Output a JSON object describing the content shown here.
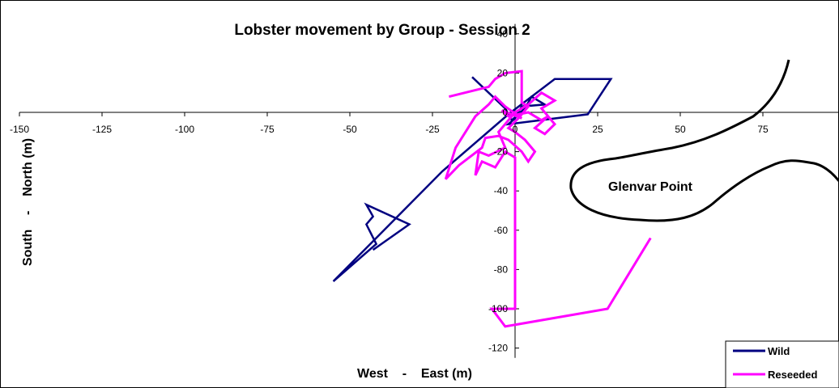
{
  "chart_data": {
    "type": "scatter",
    "title": "Lobster movement by Group - Session 2",
    "xlabel": "West    -    East (m)",
    "ylabel": "South    -    North (m)",
    "xlim": [
      -150,
      100
    ],
    "ylim": [
      -125,
      45
    ],
    "xticks": [
      "-150",
      "-125",
      "-100",
      "-75",
      "-50",
      "-25",
      "0",
      "25",
      "50",
      "75"
    ],
    "yticks": [
      "-120",
      "-100",
      "-80",
      "-60",
      "-40",
      "-20",
      "0",
      "20",
      "40"
    ],
    "annotation": "Glenvar Point",
    "legend_position": "bottom-right",
    "series": [
      {
        "name": "Wild",
        "color": "#000080",
        "points": [
          [
            -13,
            18
          ],
          [
            -3,
            2
          ],
          [
            -1,
            -4
          ],
          [
            3,
            2
          ],
          [
            5,
            8
          ],
          [
            9,
            4
          ],
          [
            2,
            3
          ],
          [
            0,
            -3
          ],
          [
            -2,
            -6
          ],
          [
            22,
            -1
          ],
          [
            29,
            17
          ],
          [
            12,
            17
          ],
          [
            -2,
            -1
          ],
          [
            -22,
            -30
          ],
          [
            -55,
            -86
          ],
          [
            -42,
            -67
          ],
          [
            -45,
            -57
          ],
          [
            -43,
            -53
          ],
          [
            -45,
            -47
          ],
          [
            -32,
            -57
          ],
          [
            -43,
            -70
          ],
          [
            -32,
            -57
          ]
        ]
      },
      {
        "name": "Reseeded",
        "color": "#FF00FF",
        "points": [
          [
            -20,
            8
          ],
          [
            -8,
            13
          ],
          [
            -6,
            17
          ],
          [
            -3,
            20
          ],
          [
            2,
            21
          ],
          [
            2,
            5
          ],
          [
            4,
            3
          ],
          [
            1,
            -3
          ],
          [
            -2,
            -8
          ],
          [
            0,
            -10
          ],
          [
            3,
            -14
          ],
          [
            6,
            -20
          ],
          [
            4,
            -25
          ],
          [
            2,
            -20
          ],
          [
            -2,
            -14
          ],
          [
            -5,
            -12
          ],
          [
            -9,
            -13
          ],
          [
            -10,
            -18
          ],
          [
            -17,
            -27
          ],
          [
            -21,
            -34
          ],
          [
            -18,
            -18
          ],
          [
            -12,
            -2
          ],
          [
            -8,
            4
          ],
          [
            -6,
            8
          ],
          [
            -3,
            3
          ],
          [
            2,
            -3
          ],
          [
            -4,
            1
          ],
          [
            -2,
            -2
          ],
          [
            4,
            0
          ],
          [
            8,
            -4
          ],
          [
            10,
            -2
          ],
          [
            6,
            -8
          ],
          [
            9,
            -11
          ],
          [
            12,
            -6
          ],
          [
            8,
            2
          ],
          [
            12,
            6
          ],
          [
            8,
            10
          ],
          [
            4,
            4
          ],
          [
            0,
            0
          ],
          [
            -5,
            -10
          ],
          [
            -3,
            -18
          ],
          [
            -8,
            -22
          ],
          [
            -11,
            -20
          ],
          [
            -12,
            -32
          ],
          [
            -10,
            -25
          ],
          [
            -6,
            -28
          ],
          [
            -3,
            -20
          ],
          [
            0,
            -23
          ],
          [
            0,
            -100
          ],
          [
            -7,
            -100
          ],
          [
            -3,
            -109
          ],
          [
            28,
            -100
          ],
          [
            41,
            -64
          ]
        ]
      }
    ]
  }
}
